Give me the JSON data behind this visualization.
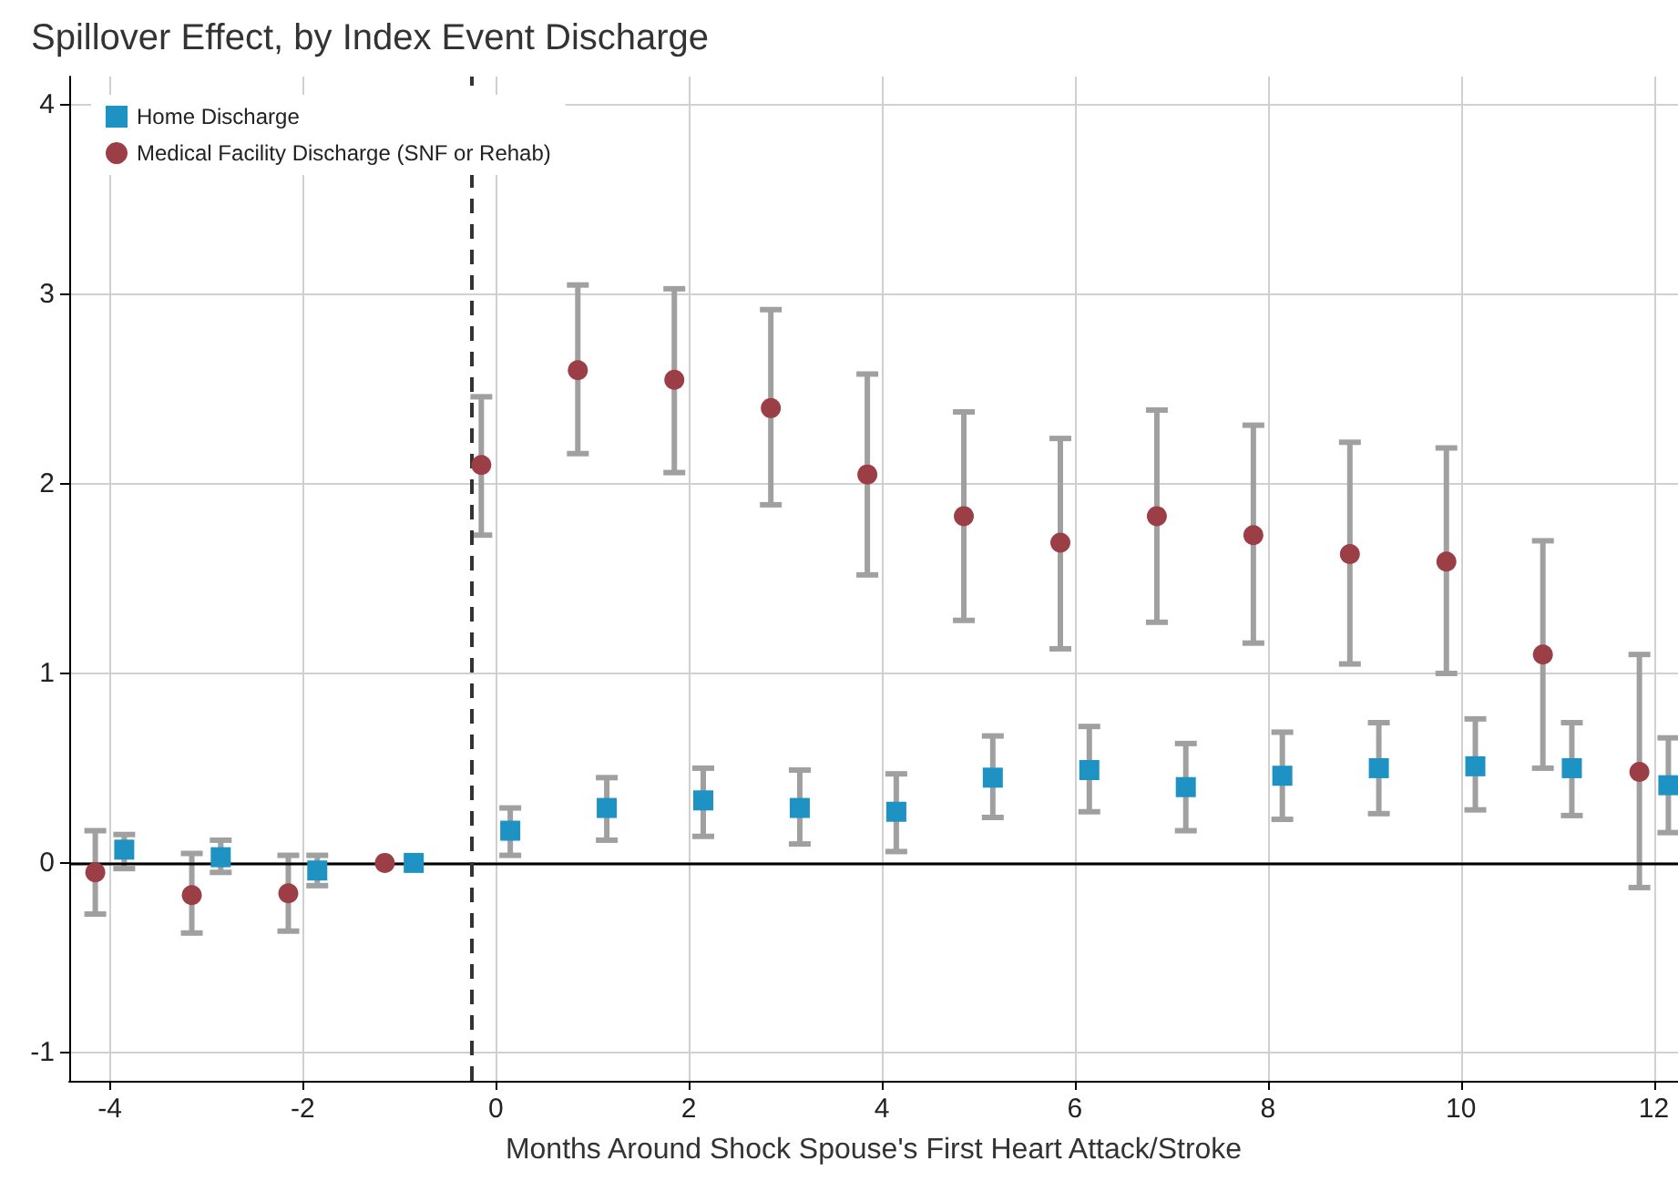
{
  "chart_data": {
    "type": "scatter",
    "title": "Spillover Effect, by Index Event Discharge",
    "xlabel": "Months Around Shock Spouse's First Heart Attack/Stroke",
    "xlim": [
      -4.42,
      12.25
    ],
    "xticks": [
      -4,
      -2,
      0,
      2,
      4,
      6,
      8,
      10,
      12
    ],
    "ylim": [
      -1.15,
      4.15
    ],
    "yticks": [
      -1,
      0,
      1,
      2,
      3,
      4
    ],
    "grid": true,
    "legend": "top left",
    "ref_lines": [
      {
        "axis": "y",
        "value": 0,
        "color": "#000000",
        "line_style": "solid"
      },
      {
        "axis": "x",
        "value": -0.25,
        "color": "#333333",
        "line_style": "dashed"
      }
    ],
    "series": [
      {
        "name": "Home Discharge",
        "color": "#1f92c4",
        "marker": "square",
        "x": [
          -3.85,
          -2.85,
          -1.85,
          -0.85,
          0.15,
          1.15,
          2.15,
          3.15,
          4.15,
          5.15,
          6.15,
          7.15,
          8.15,
          9.15,
          10.15,
          11.15,
          12.15
        ],
        "values": [
          0.07,
          0.03,
          -0.04,
          0.0,
          0.17,
          0.29,
          0.33,
          0.29,
          0.27,
          0.45,
          0.49,
          0.4,
          0.46,
          0.5,
          0.51,
          0.5,
          0.41
        ],
        "errors": [
          [
            -0.03,
            0.15
          ],
          [
            -0.05,
            0.12
          ],
          [
            -0.12,
            0.04
          ],
          null,
          [
            0.04,
            0.29
          ],
          [
            0.12,
            0.45
          ],
          [
            0.14,
            0.5
          ],
          [
            0.1,
            0.49
          ],
          [
            0.06,
            0.47
          ],
          [
            0.24,
            0.67
          ],
          [
            0.27,
            0.72
          ],
          [
            0.17,
            0.63
          ],
          [
            0.23,
            0.69
          ],
          [
            0.26,
            0.74
          ],
          [
            0.28,
            0.76
          ],
          [
            0.25,
            0.74
          ],
          [
            0.16,
            0.66
          ]
        ]
      },
      {
        "name": "Medical Facility Discharge (SNF or Rehab)",
        "color": "#9b3e46",
        "marker": "circle",
        "x": [
          -4.15,
          -3.15,
          -2.15,
          -1.15,
          -0.15,
          0.85,
          1.85,
          2.85,
          3.85,
          4.85,
          5.85,
          6.85,
          7.85,
          8.85,
          9.85,
          10.85,
          11.85
        ],
        "values": [
          -0.05,
          -0.17,
          -0.16,
          0.0,
          2.1,
          2.6,
          2.55,
          2.4,
          2.05,
          1.83,
          1.69,
          1.83,
          1.73,
          1.63,
          1.59,
          1.1,
          0.48
        ],
        "errors": [
          [
            -0.27,
            0.17
          ],
          [
            -0.37,
            0.05
          ],
          [
            -0.36,
            0.04
          ],
          null,
          [
            1.73,
            2.46
          ],
          [
            2.16,
            3.05
          ],
          [
            2.06,
            3.03
          ],
          [
            1.89,
            2.92
          ],
          [
            1.52,
            2.58
          ],
          [
            1.28,
            2.38
          ],
          [
            1.13,
            2.24
          ],
          [
            1.27,
            2.39
          ],
          [
            1.16,
            2.31
          ],
          [
            1.05,
            2.22
          ],
          [
            1.0,
            2.19
          ],
          [
            0.5,
            1.7
          ],
          [
            -0.13,
            1.1
          ]
        ]
      }
    ]
  }
}
